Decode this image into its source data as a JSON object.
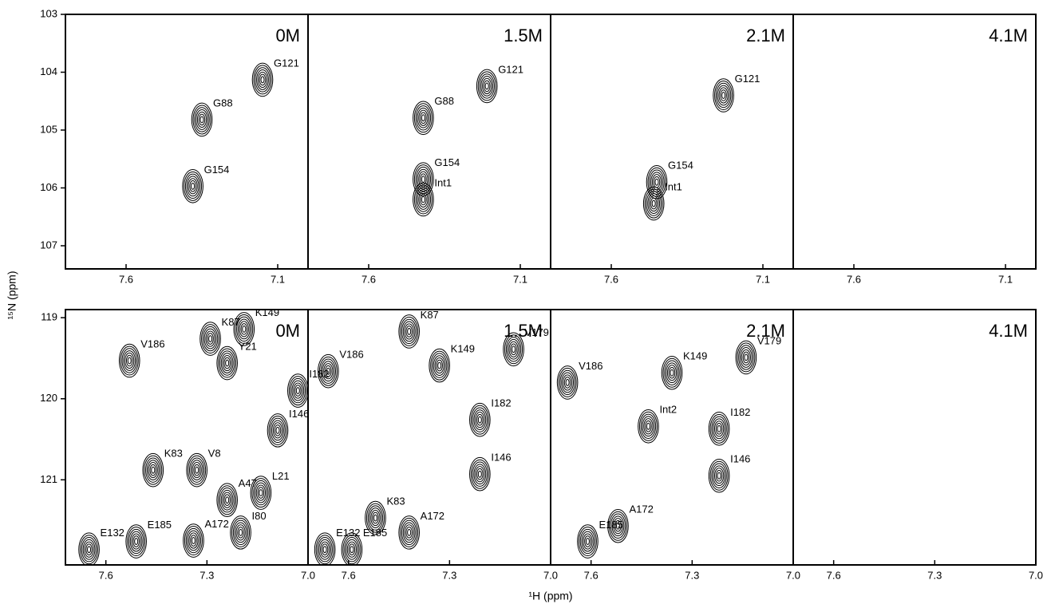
{
  "axes": {
    "xlabel": "¹H (ppm)",
    "ylabel": "¹⁵N (ppm)"
  },
  "chart_data": [
    {
      "type": "scatter",
      "title": "0M",
      "xlim": [
        7.8,
        7.0
      ],
      "ylim": [
        103,
        107.4
      ],
      "xticks": [
        7.6,
        7.1
      ],
      "yticks": [
        103,
        104,
        105,
        106,
        107
      ],
      "labels": [
        "G121",
        "G88",
        "G154"
      ],
      "x": [
        7.15,
        7.35,
        7.38
      ],
      "values": [
        104.13,
        104.82,
        105.97
      ]
    },
    {
      "type": "scatter",
      "title": "1.5M",
      "xlim": [
        7.8,
        7.0
      ],
      "ylim": [
        103,
        107.4
      ],
      "xticks": [
        7.6,
        7.1
      ],
      "labels": [
        "G121",
        "G88",
        "G154",
        "Int1"
      ],
      "x": [
        7.21,
        7.42,
        7.42,
        7.42
      ],
      "values": [
        104.24,
        104.79,
        105.85,
        106.2
      ]
    },
    {
      "type": "scatter",
      "title": "2.1M",
      "xlim": [
        7.8,
        7.0
      ],
      "ylim": [
        103,
        107.4
      ],
      "xticks": [
        7.6,
        7.1
      ],
      "labels": [
        "G121",
        "G154",
        "Int1"
      ],
      "x": [
        7.23,
        7.45,
        7.46
      ],
      "values": [
        104.4,
        105.9,
        106.27
      ]
    },
    {
      "type": "scatter",
      "title": "4.1M",
      "xlim": [
        7.8,
        7.0
      ],
      "ylim": [
        103,
        107.4
      ],
      "xticks": [
        7.6,
        7.1
      ],
      "labels": [],
      "x": [],
      "values": []
    },
    {
      "type": "scatter",
      "title": "0M",
      "xlim": [
        7.72,
        7.0
      ],
      "ylim": [
        118.9,
        122.05
      ],
      "xticks": [
        7.6,
        7.3,
        {
          "value": 7,
          "label": "7.0"
        }
      ],
      "yticks": [
        119,
        120,
        121
      ],
      "labels": [
        "V186",
        "K87",
        "K149",
        "Y21",
        "I182",
        "I146",
        "K83",
        "V8",
        "A47",
        "L21",
        "I80",
        "E185",
        "A172",
        "E132"
      ],
      "x": [
        7.53,
        7.29,
        7.19,
        7.24,
        7.03,
        7.09,
        7.46,
        7.33,
        7.24,
        7.14,
        7.2,
        7.51,
        7.34,
        7.65
      ],
      "values": [
        119.53,
        119.26,
        119.14,
        119.56,
        119.9,
        120.39,
        120.88,
        120.88,
        121.25,
        121.16,
        121.65,
        121.76,
        121.75,
        121.86
      ]
    },
    {
      "type": "scatter",
      "title": "1.5M",
      "xlim": [
        7.72,
        7.0
      ],
      "ylim": [
        118.9,
        122.05
      ],
      "xticks": [
        7.6,
        7.3,
        {
          "value": 7,
          "label": "7.0"
        }
      ],
      "labels": [
        "V186",
        "K87",
        "K149",
        "V179",
        "I182",
        "I146",
        "K83",
        "E185",
        "E132",
        "A172"
      ],
      "x": [
        7.66,
        7.42,
        7.33,
        7.11,
        7.21,
        7.21,
        7.52,
        7.59,
        7.67,
        7.42
      ],
      "values": [
        119.66,
        119.17,
        119.59,
        119.39,
        120.26,
        120.93,
        121.47,
        121.86,
        121.86,
        121.65
      ]
    },
    {
      "type": "scatter",
      "title": "2.1M",
      "xlim": [
        7.72,
        7.0
      ],
      "ylim": [
        118.9,
        122.05
      ],
      "xticks": [
        7.6,
        7.3,
        {
          "value": 7,
          "label": "7.0"
        }
      ],
      "labels": [
        "V186",
        "K149",
        "V179",
        "Int2",
        "I182",
        "I146",
        "E185",
        "A172"
      ],
      "x": [
        7.67,
        7.36,
        7.14,
        7.43,
        7.22,
        7.22,
        7.61,
        7.52
      ],
      "values": [
        119.8,
        119.68,
        119.49,
        120.34,
        120.37,
        120.95,
        121.76,
        121.57
      ]
    },
    {
      "type": "scatter",
      "title": "4.1M",
      "xlim": [
        7.72,
        7.0
      ],
      "ylim": [
        118.9,
        122.05
      ],
      "xticks": [
        7.6,
        7.3,
        {
          "value": 7,
          "label": "7.0"
        }
      ],
      "labels": [],
      "x": [],
      "values": []
    }
  ]
}
